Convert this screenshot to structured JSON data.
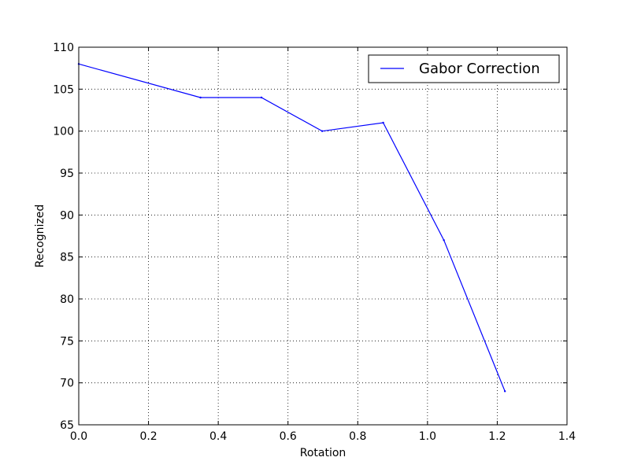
{
  "chart_data": {
    "type": "line",
    "title": "",
    "xlabel": "Rotation",
    "ylabel": "Recognized",
    "xlim": [
      0.0,
      1.4
    ],
    "ylim": [
      65,
      110
    ],
    "x_ticks": [
      0.0,
      0.2,
      0.4,
      0.6,
      0.8,
      1.0,
      1.2,
      1.4
    ],
    "x_tick_labels": [
      "0.0",
      "0.2",
      "0.4",
      "0.6",
      "0.8",
      "1.0",
      "1.2",
      "1.4"
    ],
    "y_ticks": [
      65,
      70,
      75,
      80,
      85,
      90,
      95,
      100,
      105,
      110
    ],
    "y_tick_labels": [
      "65",
      "70",
      "75",
      "80",
      "85",
      "90",
      "95",
      "100",
      "105",
      "110"
    ],
    "grid": true,
    "legend_position": "top-right",
    "series": [
      {
        "name": "Gabor Correction",
        "color": "#0000ff",
        "x": [
          0.0,
          0.349,
          0.524,
          0.698,
          0.873,
          1.047,
          1.222
        ],
        "y": [
          108,
          104,
          104,
          100,
          101,
          87,
          69
        ]
      }
    ]
  }
}
